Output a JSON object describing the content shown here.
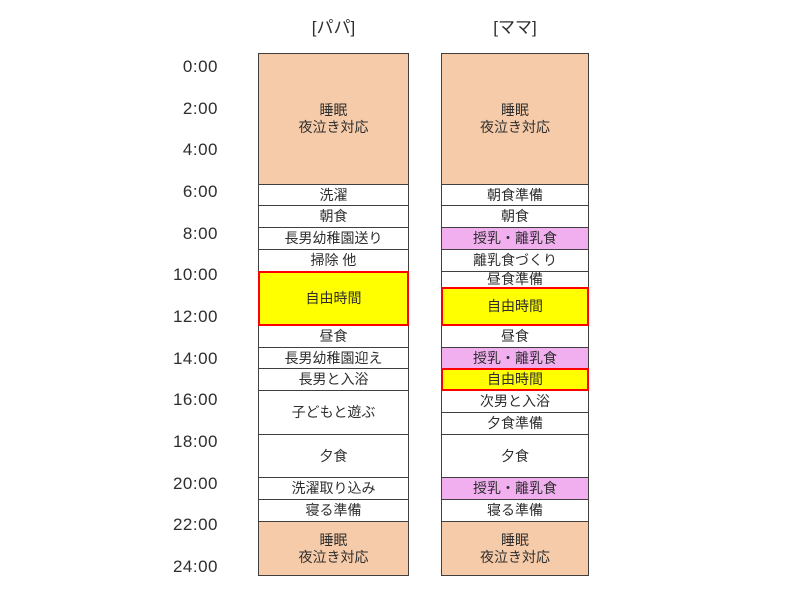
{
  "page": {
    "background": "#FFFFFF"
  },
  "chart_data": {
    "type": "bar",
    "subtype": "daily-schedule-timeline",
    "orientation": "vertical-time-axis",
    "title": "",
    "time_axis": {
      "min_hour": 0,
      "max_hour": 24,
      "tick_step_hours": 2,
      "ticks": [
        "0:00",
        "2:00",
        "4:00",
        "6:00",
        "8:00",
        "10:00",
        "12:00",
        "14:00",
        "16:00",
        "18:00",
        "20:00",
        "22:00",
        "24:00"
      ]
    },
    "colors": {
      "sleep_fill": "#F6CBA9",
      "nursing_fill": "#F1AFF0",
      "free_fill": "#FFFF00",
      "free_border": "#FF0000",
      "default_fill": "#FFFFFF",
      "block_border": "#3F3F3F",
      "text": "#2E2E2E"
    },
    "legend": "none",
    "grid": "off",
    "series": [
      {
        "title": "[パパ]",
        "segments": [
          {
            "label": "睡眠\n夜泣き対応",
            "start_hour": 0,
            "end_hour": 6,
            "category": "sleep"
          },
          {
            "label": "洗濯",
            "start_hour": 6,
            "end_hour": 7,
            "category": "task"
          },
          {
            "label": "朝食",
            "start_hour": 7,
            "end_hour": 8,
            "category": "task"
          },
          {
            "label": "長男幼稚園送り",
            "start_hour": 8,
            "end_hour": 9,
            "category": "task"
          },
          {
            "label": "掃除 他",
            "start_hour": 9,
            "end_hour": 10,
            "category": "task"
          },
          {
            "label": "自由時間",
            "start_hour": 10,
            "end_hour": 12.5,
            "category": "free"
          },
          {
            "label": "昼食",
            "start_hour": 12.5,
            "end_hour": 13.5,
            "category": "task"
          },
          {
            "label": "長男幼稚園迎え",
            "start_hour": 13.5,
            "end_hour": 14.5,
            "category": "task"
          },
          {
            "label": "長男と入浴",
            "start_hour": 14.5,
            "end_hour": 15.5,
            "category": "task"
          },
          {
            "label": "子どもと遊ぶ",
            "start_hour": 15.5,
            "end_hour": 17.5,
            "category": "task"
          },
          {
            "label": "夕食",
            "start_hour": 17.5,
            "end_hour": 19.5,
            "category": "task"
          },
          {
            "label": "洗濯取り込み",
            "start_hour": 19.5,
            "end_hour": 20.5,
            "category": "task"
          },
          {
            "label": "寝る準備",
            "start_hour": 20.5,
            "end_hour": 21.5,
            "category": "task"
          },
          {
            "label": "睡眠\n夜泣き対応",
            "start_hour": 21.5,
            "end_hour": 24,
            "category": "sleep"
          }
        ]
      },
      {
        "title": "[ママ]",
        "segments": [
          {
            "label": "睡眠\n夜泣き対応",
            "start_hour": 0,
            "end_hour": 6,
            "category": "sleep"
          },
          {
            "label": "朝食準備",
            "start_hour": 6,
            "end_hour": 7,
            "category": "task"
          },
          {
            "label": "朝食",
            "start_hour": 7,
            "end_hour": 8,
            "category": "task"
          },
          {
            "label": "授乳・離乳食",
            "start_hour": 8,
            "end_hour": 9,
            "category": "nursing"
          },
          {
            "label": "離乳食づくり",
            "start_hour": 9,
            "end_hour": 10,
            "category": "task"
          },
          {
            "label": "昼食準備",
            "start_hour": 10,
            "end_hour": 10.75,
            "category": "task"
          },
          {
            "label": "自由時間",
            "start_hour": 10.75,
            "end_hour": 12.5,
            "category": "free"
          },
          {
            "label": "昼食",
            "start_hour": 12.5,
            "end_hour": 13.5,
            "category": "task"
          },
          {
            "label": "授乳・離乳食",
            "start_hour": 13.5,
            "end_hour": 14.5,
            "category": "nursing"
          },
          {
            "label": "自由時間",
            "start_hour": 14.5,
            "end_hour": 15.5,
            "category": "free"
          },
          {
            "label": "次男と入浴",
            "start_hour": 15.5,
            "end_hour": 16.5,
            "category": "task"
          },
          {
            "label": "夕食準備",
            "start_hour": 16.5,
            "end_hour": 17.5,
            "category": "task"
          },
          {
            "label": "夕食",
            "start_hour": 17.5,
            "end_hour": 19.5,
            "category": "task"
          },
          {
            "label": "授乳・離乳食",
            "start_hour": 19.5,
            "end_hour": 20.5,
            "category": "nursing"
          },
          {
            "label": "寝る準備",
            "start_hour": 20.5,
            "end_hour": 21.5,
            "category": "task"
          },
          {
            "label": "睡眠\n夜泣き対応",
            "start_hour": 21.5,
            "end_hour": 24,
            "category": "sleep"
          }
        ]
      }
    ]
  }
}
